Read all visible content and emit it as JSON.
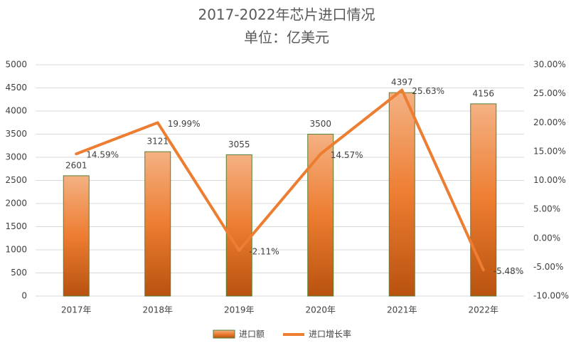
{
  "chart_data": {
    "type": "combo",
    "title": "2017-2022年芯片进口情况",
    "subtitle": "单位：亿美元",
    "categories": [
      "2017年",
      "2018年",
      "2019年",
      "2020年",
      "2021年",
      "2022年"
    ],
    "series": [
      {
        "name": "进口额",
        "type": "bar",
        "color": "#ed7d31",
        "border": "#548235",
        "values": [
          2601,
          3121,
          3055,
          3500,
          4397,
          4156
        ]
      },
      {
        "name": "进口增长率",
        "type": "line",
        "axis": "y2",
        "color": "#ed7d31",
        "values": [
          14.59,
          19.99,
          -2.11,
          14.57,
          25.63,
          -5.48
        ],
        "value_labels": [
          "14.59%",
          "19.99%",
          "-2.11%",
          "14.57%",
          "25.63%",
          "-5.48%"
        ]
      }
    ],
    "ylim": [
      0,
      5000
    ],
    "yticks": [
      0,
      500,
      1000,
      1500,
      2000,
      2500,
      3000,
      3500,
      4000,
      4500,
      5000
    ],
    "y2lim": [
      -10,
      30
    ],
    "y2ticks": [
      {
        "value": -10,
        "label": "-10.00%"
      },
      {
        "value": -5,
        "label": "-5.00%"
      },
      {
        "value": 0,
        "label": "0.00%"
      },
      {
        "value": 5,
        "label": "5.00%"
      },
      {
        "value": 10,
        "label": "10.00%"
      },
      {
        "value": 15,
        "label": "15.00%"
      },
      {
        "value": 20,
        "label": "20.00%"
      },
      {
        "value": 25,
        "label": "25.00%"
      },
      {
        "value": 30,
        "label": "30.00%"
      }
    ],
    "grid": true
  }
}
